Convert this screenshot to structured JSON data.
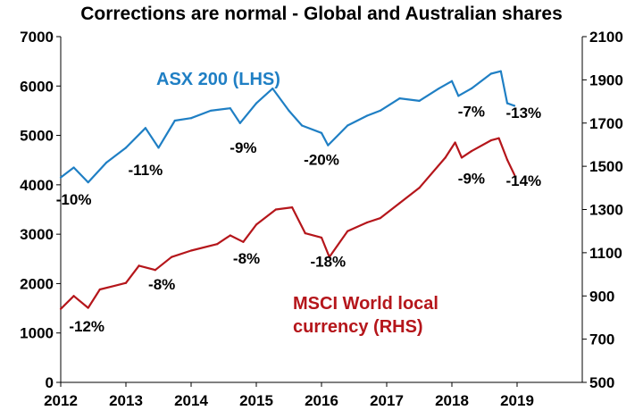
{
  "chart_data": {
    "type": "line",
    "title": "Corrections are normal - Global and Australian shares",
    "x_ticks": [
      "2012",
      "2013",
      "2014",
      "2015",
      "2016",
      "2017",
      "2018",
      "2019"
    ],
    "xlim": [
      2012,
      2020
    ],
    "y_left": {
      "ticks": [
        "0",
        "1000",
        "2000",
        "3000",
        "4000",
        "5000",
        "6000",
        "7000"
      ],
      "ylim": [
        0,
        7000
      ]
    },
    "y_right": {
      "ticks": [
        "500",
        "700",
        "900",
        "1100",
        "1300",
        "1500",
        "1700",
        "1900",
        "2100"
      ],
      "ylim": [
        500,
        2100
      ]
    },
    "grid": false,
    "legend": "none",
    "series": [
      {
        "name": "ASX 200 (LHS)",
        "axis": "left",
        "color": "#1f7fc4",
        "label_lines": [
          "ASX 200 (LHS)"
        ],
        "x": [
          2012.0,
          2012.2,
          2012.42,
          2012.7,
          2013.0,
          2013.3,
          2013.5,
          2013.75,
          2014.0,
          2014.3,
          2014.6,
          2014.75,
          2015.0,
          2015.25,
          2015.5,
          2015.7,
          2016.0,
          2016.1,
          2016.4,
          2016.7,
          2016.9,
          2017.2,
          2017.5,
          2017.8,
          2018.0,
          2018.1,
          2018.3,
          2018.6,
          2018.75,
          2018.85,
          2018.96
        ],
        "y": [
          4150,
          4350,
          4050,
          4450,
          4750,
          5150,
          4750,
          5300,
          5350,
          5500,
          5550,
          5250,
          5650,
          5950,
          5500,
          5200,
          5050,
          4800,
          5200,
          5400,
          5500,
          5750,
          5700,
          5950,
          6100,
          5800,
          5950,
          6250,
          6300,
          5650,
          5600
        ]
      },
      {
        "name": "MSCI World local currency (RHS)",
        "axis": "right",
        "color": "#b5161b",
        "label_lines": [
          "MSCI World local",
          "currency (RHS)"
        ],
        "x": [
          2012.0,
          2012.2,
          2012.42,
          2012.6,
          2013.0,
          2013.2,
          2013.45,
          2013.7,
          2014.0,
          2014.4,
          2014.6,
          2014.8,
          2015.0,
          2015.3,
          2015.55,
          2015.75,
          2016.0,
          2016.12,
          2016.4,
          2016.7,
          2016.9,
          2017.2,
          2017.5,
          2017.9,
          2018.05,
          2018.15,
          2018.3,
          2018.6,
          2018.72,
          2018.85,
          2018.96
        ],
        "y": [
          840,
          900,
          845,
          930,
          960,
          1040,
          1020,
          1080,
          1110,
          1140,
          1180,
          1150,
          1230,
          1300,
          1310,
          1190,
          1170,
          1080,
          1200,
          1240,
          1260,
          1330,
          1400,
          1540,
          1610,
          1540,
          1570,
          1620,
          1630,
          1530,
          1460
        ]
      }
    ],
    "annotations": [
      {
        "text": "-10%",
        "x": 2012.2,
        "y": 3600,
        "axis": "left"
      },
      {
        "text": "-11%",
        "x": 2013.3,
        "y": 4200,
        "axis": "left"
      },
      {
        "text": "-9%",
        "x": 2014.8,
        "y": 4650,
        "axis": "left"
      },
      {
        "text": "-20%",
        "x": 2016.0,
        "y": 4400,
        "axis": "left"
      },
      {
        "text": "-7%",
        "x": 2018.3,
        "y": 5380,
        "axis": "left"
      },
      {
        "text": "-13%",
        "x": 2019.1,
        "y": 5350,
        "axis": "left"
      },
      {
        "text": "-12%",
        "x": 2012.4,
        "y": 735,
        "axis": "right"
      },
      {
        "text": "-8%",
        "x": 2013.55,
        "y": 930,
        "axis": "right"
      },
      {
        "text": "-8%",
        "x": 2014.85,
        "y": 1050,
        "axis": "right"
      },
      {
        "text": "-18%",
        "x": 2016.1,
        "y": 1035,
        "axis": "right"
      },
      {
        "text": "-9%",
        "x": 2018.3,
        "y": 1420,
        "axis": "right"
      },
      {
        "text": "-14%",
        "x": 2019.1,
        "y": 1410,
        "axis": "right"
      }
    ]
  }
}
